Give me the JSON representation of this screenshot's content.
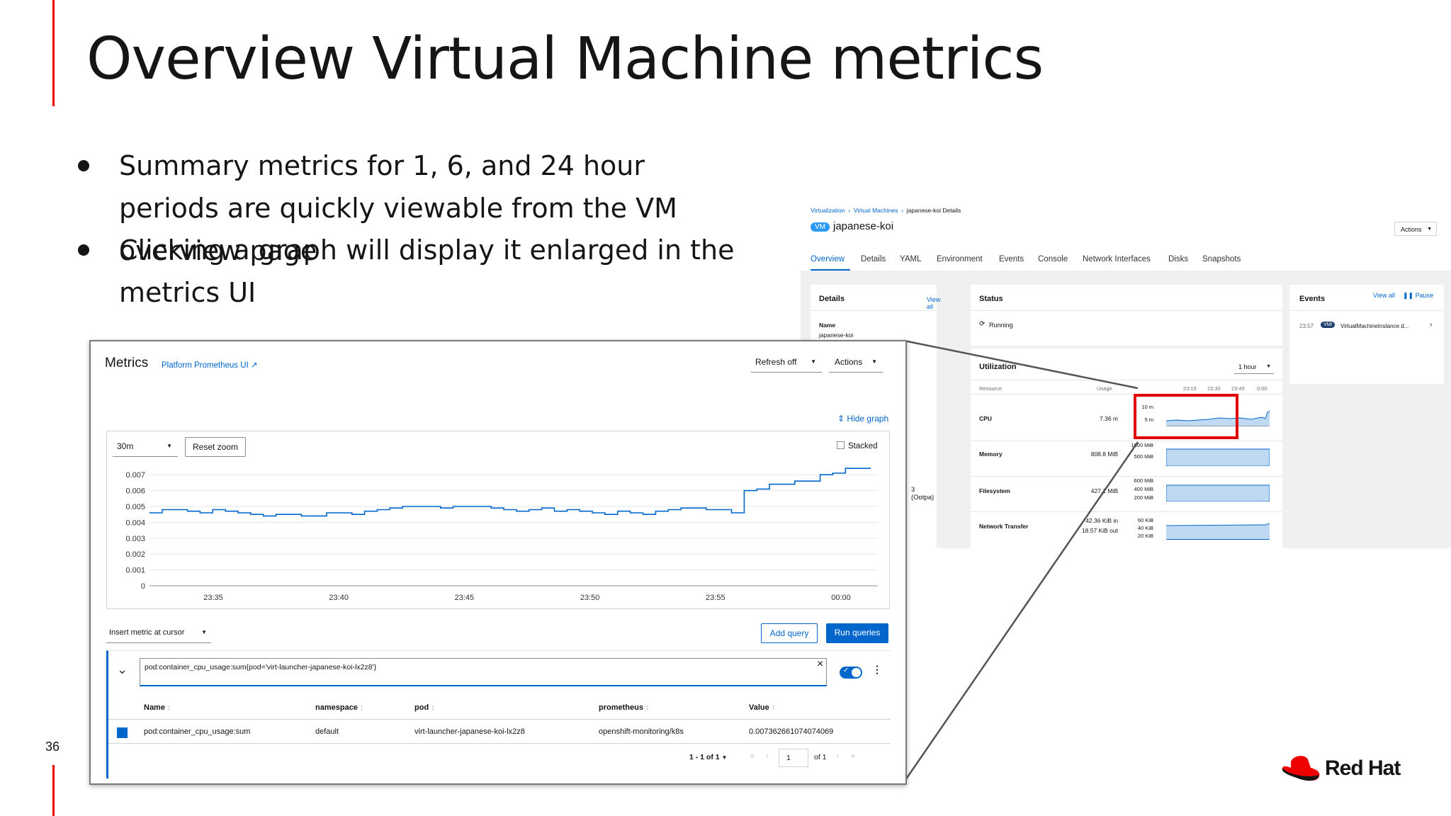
{
  "slide": {
    "title": "Overview Virtual Machine metrics",
    "bullets": [
      "Summary metrics for 1, 6, and 24 hour periods are quickly viewable from the VM overview page",
      "Clicking a graph will display it enlarged in the metrics UI"
    ],
    "slide_number": "36",
    "logo_text": "Red Hat",
    "accent_color": "#ee0000"
  },
  "console": {
    "breadcrumb": [
      "Virtualization",
      "Virtual Machines",
      "japanese-koi Details"
    ],
    "badge": "VM",
    "vm_name": "japanese-koi",
    "actions": "Actions",
    "tabs": [
      "Overview",
      "Details",
      "YAML",
      "Environment",
      "Events",
      "Console",
      "Network Interfaces",
      "Disks",
      "Snapshots"
    ],
    "details_card": {
      "title": "Details",
      "view_all": "View all",
      "name_label": "Name",
      "name_value": "japanese-koi"
    },
    "status_card": {
      "title": "Status",
      "value": "Running"
    },
    "events_card": {
      "title": "Events",
      "view_all": "View all",
      "pause": "Pause",
      "time": "23:57",
      "badge": "VMI",
      "text": "VirtualMachineInstance d..."
    },
    "partial_text": "3 (Ootpa)",
    "utilization": {
      "title": "Utilization",
      "range": "1 hour",
      "col_resource": "Resource",
      "col_usage": "Usage",
      "time_ticks": [
        "23:15",
        "23:30",
        "23:45",
        "0:00"
      ],
      "rows": [
        {
          "name": "CPU",
          "usage": "7.36 m",
          "axis": [
            "10 m",
            "5 m"
          ]
        },
        {
          "name": "Memory",
          "usage": "808.8 MiB",
          "axis": [
            "1000 MiB",
            "500 MiB"
          ]
        },
        {
          "name": "Filesystem",
          "usage": "427.1 MiB",
          "axis": [
            "600 MiB",
            "400 MiB",
            "200 MiB"
          ]
        },
        {
          "name": "Network Transfer",
          "usage": "42.36 KiB in",
          "usage2": "18.57 KiB out",
          "axis": [
            "60 KiB",
            "40 KiB",
            "20 KiB"
          ]
        }
      ]
    }
  },
  "metrics": {
    "title": "Metrics",
    "prometheus_link": "Platform Prometheus UI",
    "refresh": "Refresh off",
    "actions": "Actions",
    "hide_graph": "Hide graph",
    "time_range": "30m",
    "reset_zoom": "Reset zoom",
    "stacked": "Stacked",
    "insert_metric": "Insert metric at cursor",
    "add_query": "Add query",
    "run_queries": "Run queries",
    "query": "pod:container_cpu_usage:sum{pod='virt-launcher-japanese-koi-lx2z8'}",
    "table_headers": [
      "Name",
      "namespace",
      "pod",
      "prometheus",
      "Value"
    ],
    "table_row": [
      "pod:container_cpu_usage:sum",
      "default",
      "virt-launcher-japanese-koi-lx2z8",
      "openshift-monitoring/k8s",
      "0.007362661074074069"
    ],
    "pagination": {
      "range": "1 - 1 of 1",
      "page": "1",
      "of": "of 1"
    },
    "colors": {
      "primary": "#0066cc",
      "series": "#0066cc"
    }
  },
  "chart_data": {
    "type": "line",
    "title": "",
    "xlabel": "",
    "ylabel": "",
    "x_ticks": [
      "23:35",
      "23:40",
      "23:45",
      "23:50",
      "23:55",
      "00:00"
    ],
    "y_ticks": [
      "0.007",
      "0.006",
      "0.005",
      "0.004",
      "0.003",
      "0.002",
      "0.001",
      "0"
    ],
    "ylim": [
      0,
      0.0075
    ],
    "xlim": [
      0,
      30
    ],
    "series": [
      {
        "values": [
          0.0046,
          0.0048,
          0.0048,
          0.0047,
          0.0046,
          0.0048,
          0.0047,
          0.0046,
          0.0045,
          0.0044,
          0.0045,
          0.0045,
          0.0044,
          0.0044,
          0.0046,
          0.0046,
          0.0045,
          0.0047,
          0.0048,
          0.0049,
          0.005,
          0.005,
          0.005,
          0.0049,
          0.005,
          0.005,
          0.005,
          0.0049,
          0.0048,
          0.0047,
          0.0048,
          0.0049,
          0.0047,
          0.0048,
          0.0047,
          0.0046,
          0.0045,
          0.0047,
          0.0046,
          0.0045,
          0.0047,
          0.0048,
          0.0049,
          0.0049,
          0.0048,
          0.0048,
          0.0046,
          0.006,
          0.0061,
          0.0064,
          0.0064,
          0.0066,
          0.0066,
          0.007,
          0.0071,
          0.0074,
          0.0074
        ]
      }
    ],
    "grid": true,
    "legend": "none"
  }
}
